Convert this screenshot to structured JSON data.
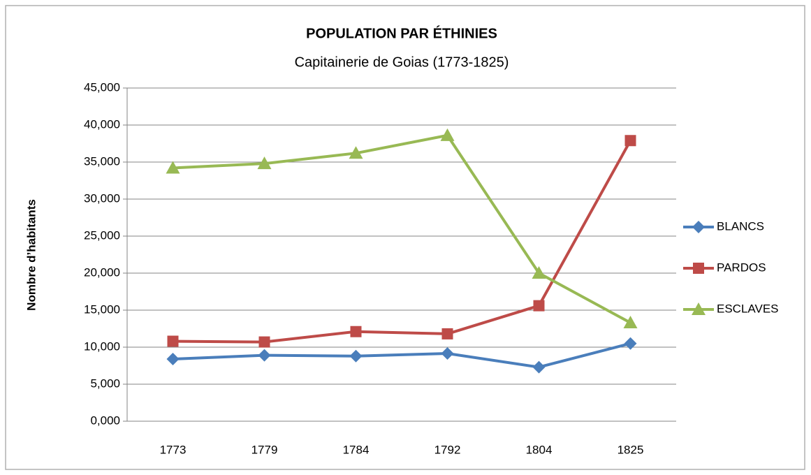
{
  "chart_data": {
    "type": "line",
    "title": "POPULATION PAR ÉTHINIES",
    "subtitle": "Capitainerie de  Goias (1773-1825)",
    "y_label": "Nombre d’habitants",
    "categories": [
      "1773",
      "1779",
      "1784",
      "1792",
      "1804",
      "1825"
    ],
    "series": [
      {
        "name": "BLANCS",
        "color": "#4a7ebb",
        "marker": "diamond",
        "values": [
          8400,
          8900,
          8800,
          9150,
          7300,
          10500
        ]
      },
      {
        "name": "PARDOS",
        "color": "#be4b48",
        "marker": "square",
        "values": [
          10800,
          10700,
          12100,
          11800,
          15600,
          37900
        ]
      },
      {
        "name": "ESCLAVES",
        "color": "#98b954",
        "marker": "triangle",
        "values": [
          34200,
          34800,
          36200,
          38600,
          20000,
          13300
        ]
      }
    ],
    "ylim": [
      0,
      45000
    ],
    "yticks": [
      {
        "value": 0,
        "label": "0,000"
      },
      {
        "value": 5000,
        "label": "5,000"
      },
      {
        "value": 10000,
        "label": "10,000"
      },
      {
        "value": 15000,
        "label": "15,000"
      },
      {
        "value": 20000,
        "label": "20,000"
      },
      {
        "value": 25000,
        "label": "25,000"
      },
      {
        "value": 30000,
        "label": "30,000"
      },
      {
        "value": 35000,
        "label": "35,000"
      },
      {
        "value": 40000,
        "label": "40,000"
      },
      {
        "value": 45000,
        "label": "45,000"
      }
    ],
    "grid": true,
    "legend": "right"
  }
}
